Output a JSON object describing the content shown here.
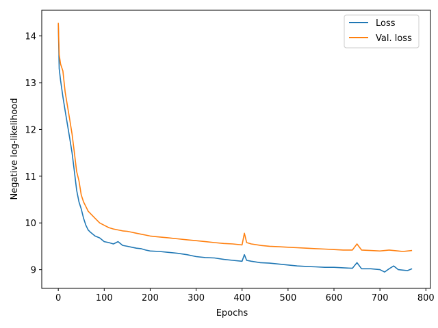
{
  "chart_data": {
    "type": "line",
    "title": "",
    "xlabel": "Epochs",
    "ylabel": "Negative log-likelihood",
    "xlim": [
      -36,
      810
    ],
    "ylim": [
      8.6,
      14.55
    ],
    "x_ticks": [
      0,
      100,
      200,
      300,
      400,
      500,
      600,
      700,
      800
    ],
    "y_ticks": [
      9,
      10,
      11,
      12,
      13,
      14
    ],
    "grid": false,
    "legend": "top-right",
    "series": [
      {
        "name": "Loss",
        "color": "#1f77b4",
        "x": [
          0,
          2,
          5,
          10,
          15,
          20,
          25,
          30,
          35,
          40,
          45,
          50,
          55,
          60,
          65,
          70,
          80,
          90,
          100,
          110,
          120,
          130,
          140,
          150,
          160,
          170,
          180,
          190,
          200,
          220,
          240,
          260,
          280,
          300,
          320,
          340,
          360,
          380,
          400,
          405,
          410,
          420,
          440,
          460,
          480,
          500,
          520,
          540,
          560,
          580,
          600,
          620,
          640,
          650,
          660,
          680,
          700,
          710,
          720,
          730,
          740,
          750,
          760,
          770
        ],
        "values": [
          14.25,
          13.3,
          13.05,
          12.7,
          12.4,
          12.1,
          11.8,
          11.5,
          11.1,
          10.7,
          10.45,
          10.3,
          10.1,
          9.95,
          9.85,
          9.8,
          9.72,
          9.68,
          9.6,
          9.58,
          9.55,
          9.6,
          9.52,
          9.5,
          9.48,
          9.46,
          9.45,
          9.42,
          9.4,
          9.39,
          9.37,
          9.35,
          9.32,
          9.28,
          9.26,
          9.25,
          9.22,
          9.2,
          9.18,
          9.32,
          9.2,
          9.18,
          9.15,
          9.14,
          9.12,
          9.1,
          9.08,
          9.07,
          9.06,
          9.05,
          9.05,
          9.04,
          9.03,
          9.15,
          9.02,
          9.02,
          9.0,
          8.95,
          9.02,
          9.08,
          9.0,
          8.99,
          8.98,
          9.02
        ]
      },
      {
        "name": "Val. loss",
        "color": "#ff7f0e",
        "x": [
          0,
          2,
          5,
          10,
          15,
          20,
          25,
          30,
          35,
          40,
          45,
          50,
          55,
          60,
          65,
          70,
          80,
          90,
          100,
          110,
          120,
          130,
          140,
          150,
          160,
          170,
          180,
          190,
          200,
          220,
          240,
          260,
          280,
          300,
          320,
          340,
          360,
          380,
          400,
          405,
          410,
          420,
          440,
          460,
          480,
          500,
          520,
          540,
          560,
          580,
          600,
          620,
          640,
          650,
          660,
          680,
          700,
          720,
          740,
          750,
          760,
          770
        ],
        "values": [
          14.28,
          13.6,
          13.4,
          13.25,
          12.8,
          12.5,
          12.2,
          11.9,
          11.5,
          11.1,
          10.9,
          10.6,
          10.45,
          10.35,
          10.25,
          10.2,
          10.1,
          10.0,
          9.95,
          9.9,
          9.87,
          9.85,
          9.83,
          9.82,
          9.8,
          9.78,
          9.76,
          9.74,
          9.72,
          9.7,
          9.68,
          9.66,
          9.64,
          9.62,
          9.6,
          9.58,
          9.56,
          9.55,
          9.53,
          9.78,
          9.58,
          9.55,
          9.52,
          9.5,
          9.49,
          9.48,
          9.47,
          9.46,
          9.45,
          9.44,
          9.43,
          9.42,
          9.42,
          9.55,
          9.42,
          9.41,
          9.4,
          9.42,
          9.4,
          9.39,
          9.4,
          9.41
        ]
      }
    ]
  }
}
